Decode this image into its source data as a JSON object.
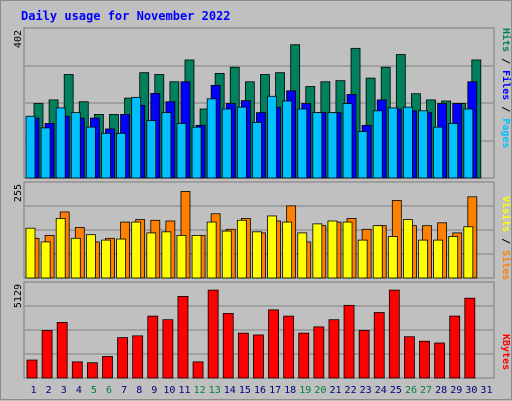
{
  "title": "Daily usage for November 2022",
  "panels": {
    "hits": {
      "max_label": "402",
      "side_label": {
        "pages": "Pages",
        "files": "Files",
        "hits": "Hits",
        "sep": " / "
      }
    },
    "visits": {
      "max_label": "255",
      "side_label": {
        "sites": "Sites",
        "visits": "Visits",
        "sep": " / "
      }
    },
    "kbytes": {
      "max_label": "5129",
      "side_label": {
        "kbytes": "KBytes"
      }
    }
  },
  "colors": {
    "hits": "#00805c",
    "files": "#0000ff",
    "pages": "#00c0ff",
    "visits": "#ffff00",
    "sites": "#ff8000",
    "kbytes": "#ff0000",
    "title": "#0000ff",
    "weekday_label": "#000080",
    "weekend_label": "#008040",
    "background": "#c0c0c0",
    "grid": "#808080"
  },
  "chart_data": [
    {
      "type": "bar",
      "title": "Daily usage for November 2022",
      "categories": [
        "1",
        "2",
        "3",
        "4",
        "5",
        "6",
        "7",
        "8",
        "9",
        "10",
        "11",
        "12",
        "13",
        "14",
        "15",
        "16",
        "17",
        "18",
        "19",
        "20",
        "21",
        "22",
        "23",
        "24",
        "25",
        "26",
        "27",
        "28",
        "29",
        "30",
        "31"
      ],
      "weekend_days": [
        "5",
        "6",
        "12",
        "13",
        "19",
        "20",
        "26",
        "27"
      ],
      "ylim": [
        0,
        402
      ],
      "series": [
        {
          "name": "Hits",
          "values": [
            205,
            215,
            285,
            210,
            175,
            175,
            220,
            290,
            285,
            265,
            325,
            190,
            288,
            305,
            265,
            285,
            290,
            367,
            252,
            265,
            268,
            357,
            275,
            305,
            340,
            232,
            215,
            212,
            205,
            325,
            0
          ]
        },
        {
          "name": "Files",
          "values": [
            165,
            150,
            170,
            165,
            165,
            135,
            175,
            200,
            233,
            210,
            265,
            145,
            255,
            205,
            213,
            180,
            195,
            240,
            205,
            180,
            180,
            230,
            145,
            215,
            190,
            185,
            180,
            205,
            205,
            265,
            0
          ]
        },
        {
          "name": "Pages",
          "values": [
            170,
            138,
            193,
            180,
            140,
            123,
            123,
            222,
            158,
            180,
            150,
            140,
            218,
            190,
            195,
            153,
            225,
            212,
            190,
            180,
            180,
            205,
            128,
            185,
            193,
            195,
            185,
            140,
            150,
            190,
            0
          ]
        }
      ]
    },
    {
      "type": "bar",
      "categories": [
        "1",
        "2",
        "3",
        "4",
        "5",
        "6",
        "7",
        "8",
        "9",
        "10",
        "11",
        "12",
        "13",
        "14",
        "15",
        "16",
        "17",
        "18",
        "19",
        "20",
        "21",
        "22",
        "23",
        "24",
        "25",
        "26",
        "27",
        "28",
        "29",
        "30",
        "31"
      ],
      "ylim": [
        0,
        255
      ],
      "series": [
        {
          "name": "Visits",
          "values": [
            138,
            100,
            165,
            110,
            120,
            105,
            108,
            155,
            125,
            128,
            118,
            118,
            155,
            130,
            160,
            128,
            172,
            155,
            125,
            150,
            158,
            155,
            105,
            145,
            115,
            162,
            105,
            105,
            115,
            142,
            0
          ]
        },
        {
          "name": "Sites",
          "values": [
            110,
            118,
            183,
            140,
            100,
            110,
            155,
            162,
            160,
            158,
            240,
            118,
            178,
            135,
            165,
            125,
            158,
            200,
            100,
            145,
            155,
            165,
            135,
            145,
            215,
            145,
            145,
            153,
            125,
            225,
            0
          ]
        }
      ]
    },
    {
      "type": "bar",
      "categories": [
        "1",
        "2",
        "3",
        "4",
        "5",
        "6",
        "7",
        "8",
        "9",
        "10",
        "11",
        "12",
        "13",
        "14",
        "15",
        "16",
        "17",
        "18",
        "19",
        "20",
        "21",
        "22",
        "23",
        "24",
        "25",
        "26",
        "27",
        "28",
        "29",
        "30",
        "31"
      ],
      "ylim": [
        0,
        5129
      ],
      "series": [
        {
          "name": "KBytes",
          "values": [
            1000,
            2650,
            3100,
            900,
            850,
            1200,
            2250,
            2350,
            3450,
            3250,
            4550,
            900,
            4900,
            3600,
            2500,
            2400,
            3800,
            3450,
            2500,
            2850,
            3250,
            4050,
            2650,
            3650,
            4900,
            2300,
            2050,
            1950,
            3450,
            4450,
            0
          ]
        }
      ]
    }
  ]
}
